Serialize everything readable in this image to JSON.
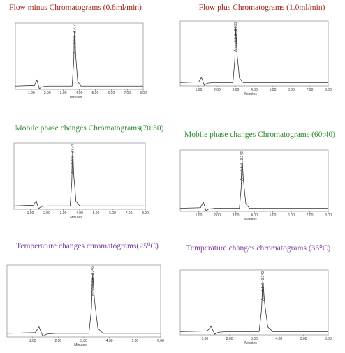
{
  "chart_data": [
    {
      "type": "line",
      "title": "Flow minus Chromatograms  (0.8ml/min)",
      "title_color": "#a3231f",
      "color": "#333333",
      "peak_label": "Armodafinil - 3.707",
      "xlabel": "Minutes",
      "x": [
        0,
        1.2,
        1.35,
        1.5,
        1.65,
        2.0,
        3.55,
        3.65,
        3.707,
        3.78,
        3.9,
        4.1,
        8
      ],
      "values": [
        5,
        6,
        14,
        1,
        4,
        5,
        5,
        40,
        88,
        50,
        12,
        5,
        5
      ],
      "xlim": [
        0,
        8
      ],
      "ylim": [
        0,
        100
      ],
      "xticks": [
        {
          "value": 1,
          "label": "1.00"
        },
        {
          "value": 2,
          "label": "2.00"
        },
        {
          "value": 3,
          "label": "3.00"
        },
        {
          "value": 4,
          "label": "4.00"
        },
        {
          "value": 5,
          "label": "5.00"
        },
        {
          "value": 6,
          "label": "6.00"
        },
        {
          "value": 7,
          "label": "7.00"
        },
        {
          "value": 8,
          "label": "8.00"
        }
      ]
    },
    {
      "type": "line",
      "title": "Flow plus Chromatograms  (1.0ml/min)",
      "title_color": "#a3231f",
      "color": "#333333",
      "peak_label": "Armodafinil - 3.003",
      "xlabel": "Minutes",
      "x": [
        0,
        1.0,
        1.15,
        1.3,
        1.45,
        1.8,
        2.85,
        2.95,
        3.003,
        3.07,
        3.2,
        3.4,
        8
      ],
      "values": [
        5,
        6,
        13,
        1,
        4,
        5,
        5,
        40,
        90,
        50,
        12,
        5,
        5
      ],
      "xlim": [
        0,
        8
      ],
      "ylim": [
        0,
        100
      ],
      "xticks": [
        {
          "value": 1,
          "label": "1.00"
        },
        {
          "value": 2,
          "label": "2.00"
        },
        {
          "value": 3,
          "label": "3.00"
        },
        {
          "value": 4,
          "label": "4.00"
        },
        {
          "value": 5,
          "label": "5.00"
        },
        {
          "value": 6,
          "label": "6.00"
        },
        {
          "value": 7,
          "label": "7.00"
        },
        {
          "value": 8,
          "label": "8.00"
        }
      ]
    },
    {
      "type": "line",
      "title": "Mobile phase changes Chromatograms(70:30)",
      "title_color": "#2e8b2e",
      "color": "#333333",
      "peak_label": "Armodafinil - 3.574",
      "xlabel": "Minutes",
      "x": [
        0,
        1.2,
        1.35,
        1.5,
        1.65,
        2.0,
        3.42,
        3.52,
        3.574,
        3.65,
        3.78,
        4.0,
        8
      ],
      "values": [
        5,
        6,
        13,
        1,
        4,
        5,
        5,
        40,
        88,
        50,
        12,
        5,
        5
      ],
      "xlim": [
        0,
        8
      ],
      "ylim": [
        0,
        100
      ],
      "xticks": [
        {
          "value": 1,
          "label": "1.00"
        },
        {
          "value": 2,
          "label": "2.00"
        },
        {
          "value": 3,
          "label": "3.00"
        },
        {
          "value": 4,
          "label": "4.00"
        },
        {
          "value": 5,
          "label": "5.00"
        },
        {
          "value": 6,
          "label": "6.00"
        },
        {
          "value": 7,
          "label": "7.00"
        },
        {
          "value": 8,
          "label": "8.00"
        }
      ]
    },
    {
      "type": "line",
      "title": "Mobile phase changes  Chromatograms  (60:40)",
      "title_color": "#2e8b2e",
      "color": "#333333",
      "peak_label": "Armodafinil - 3.346",
      "xlabel": "Minutes",
      "x": [
        0,
        1.1,
        1.25,
        1.4,
        1.55,
        1.9,
        3.2,
        3.3,
        3.346,
        3.42,
        3.55,
        3.75,
        8
      ],
      "values": [
        5,
        6,
        15,
        1,
        4,
        5,
        5,
        40,
        85,
        50,
        12,
        5,
        5
      ],
      "xlim": [
        0,
        8
      ],
      "ylim": [
        0,
        100
      ],
      "xticks": [
        {
          "value": 1,
          "label": "1.00"
        },
        {
          "value": 2,
          "label": "2.00"
        },
        {
          "value": 3,
          "label": "3.00"
        },
        {
          "value": 4,
          "label": "4.00"
        },
        {
          "value": 5,
          "label": "5.00"
        },
        {
          "value": 6,
          "label": "6.00"
        },
        {
          "value": 7,
          "label": "7.00"
        },
        {
          "value": 8,
          "label": "8.00"
        }
      ]
    },
    {
      "type": "line",
      "title": "Temperature  changes chromatograms(25⁰C)",
      "title_color": "#7b3f9e",
      "color": "#333333",
      "peak_label": "Armodafinil - 3.346",
      "xlabel": "Minutes",
      "x": [
        0,
        1.1,
        1.25,
        1.4,
        1.55,
        1.9,
        3.2,
        3.3,
        3.346,
        3.42,
        3.55,
        3.75,
        6
      ],
      "values": [
        5,
        6,
        14,
        1,
        4,
        5,
        5,
        40,
        88,
        50,
        12,
        5,
        5
      ],
      "xlim": [
        0,
        6
      ],
      "ylim": [
        0,
        100
      ],
      "xticks": [
        {
          "value": 1,
          "label": "1.00"
        },
        {
          "value": 2,
          "label": "2.00"
        },
        {
          "value": 3,
          "label": "3.00"
        },
        {
          "value": 4,
          "label": "4.00"
        },
        {
          "value": 5,
          "label": "5.00"
        },
        {
          "value": 6,
          "label": "6.00"
        }
      ]
    },
    {
      "type": "line",
      "title": "Temperature  changes chromatograms  (35⁰C)",
      "title_color": "#7b3f9e",
      "color": "#333333",
      "peak_label": "Armodafinil - 3.349",
      "xlabel": "Minutes",
      "x": [
        0,
        1.1,
        1.25,
        1.4,
        1.55,
        1.9,
        3.2,
        3.3,
        3.349,
        3.42,
        3.55,
        3.75,
        6
      ],
      "values": [
        5,
        6,
        13,
        1,
        4,
        5,
        5,
        40,
        86,
        50,
        12,
        5,
        5
      ],
      "xlim": [
        0,
        6
      ],
      "ylim": [
        0,
        100
      ],
      "xticks": [
        {
          "value": 1,
          "label": "1.00"
        },
        {
          "value": 2,
          "label": "2.00"
        },
        {
          "value": 3,
          "label": "3.00"
        },
        {
          "value": 4,
          "label": "4.00"
        },
        {
          "value": 5,
          "label": "5.00"
        },
        {
          "value": 6,
          "label": "6.00"
        }
      ]
    }
  ]
}
